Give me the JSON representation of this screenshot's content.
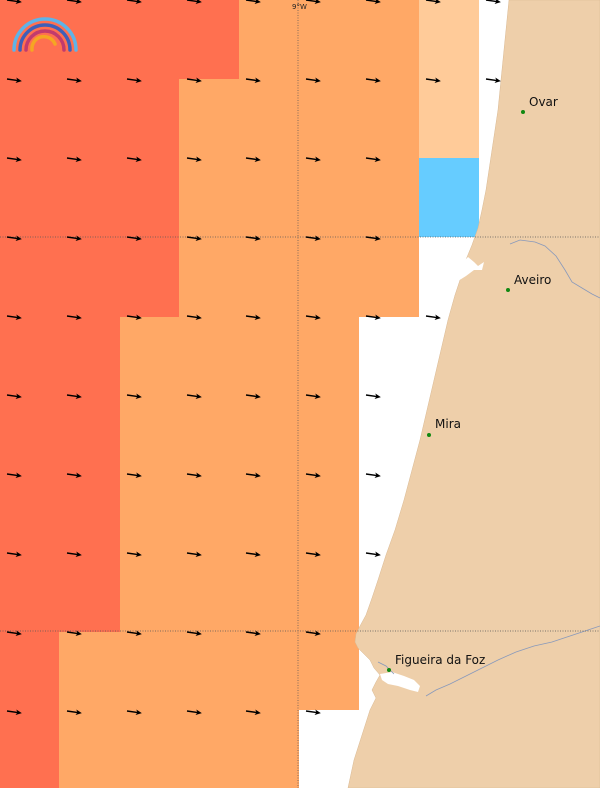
{
  "map": {
    "grid_label": "9°W",
    "colors": {
      "cell_dark": "#ff7050",
      "cell_mid": "#ffa866",
      "cell_light": "#ffcb99",
      "cell_blue": "#66ccff",
      "land": "#eecfaa",
      "water": "#ffffff",
      "arrow": "#000000",
      "city_marker": "#118811",
      "river": "#8899bb"
    },
    "logo_icon": "rainbow-logo-icon",
    "places": [
      {
        "name": "Ovar"
      },
      {
        "name": "Aveiro"
      },
      {
        "name": "Mira"
      },
      {
        "name": "Figueira da Foz"
      }
    ]
  }
}
